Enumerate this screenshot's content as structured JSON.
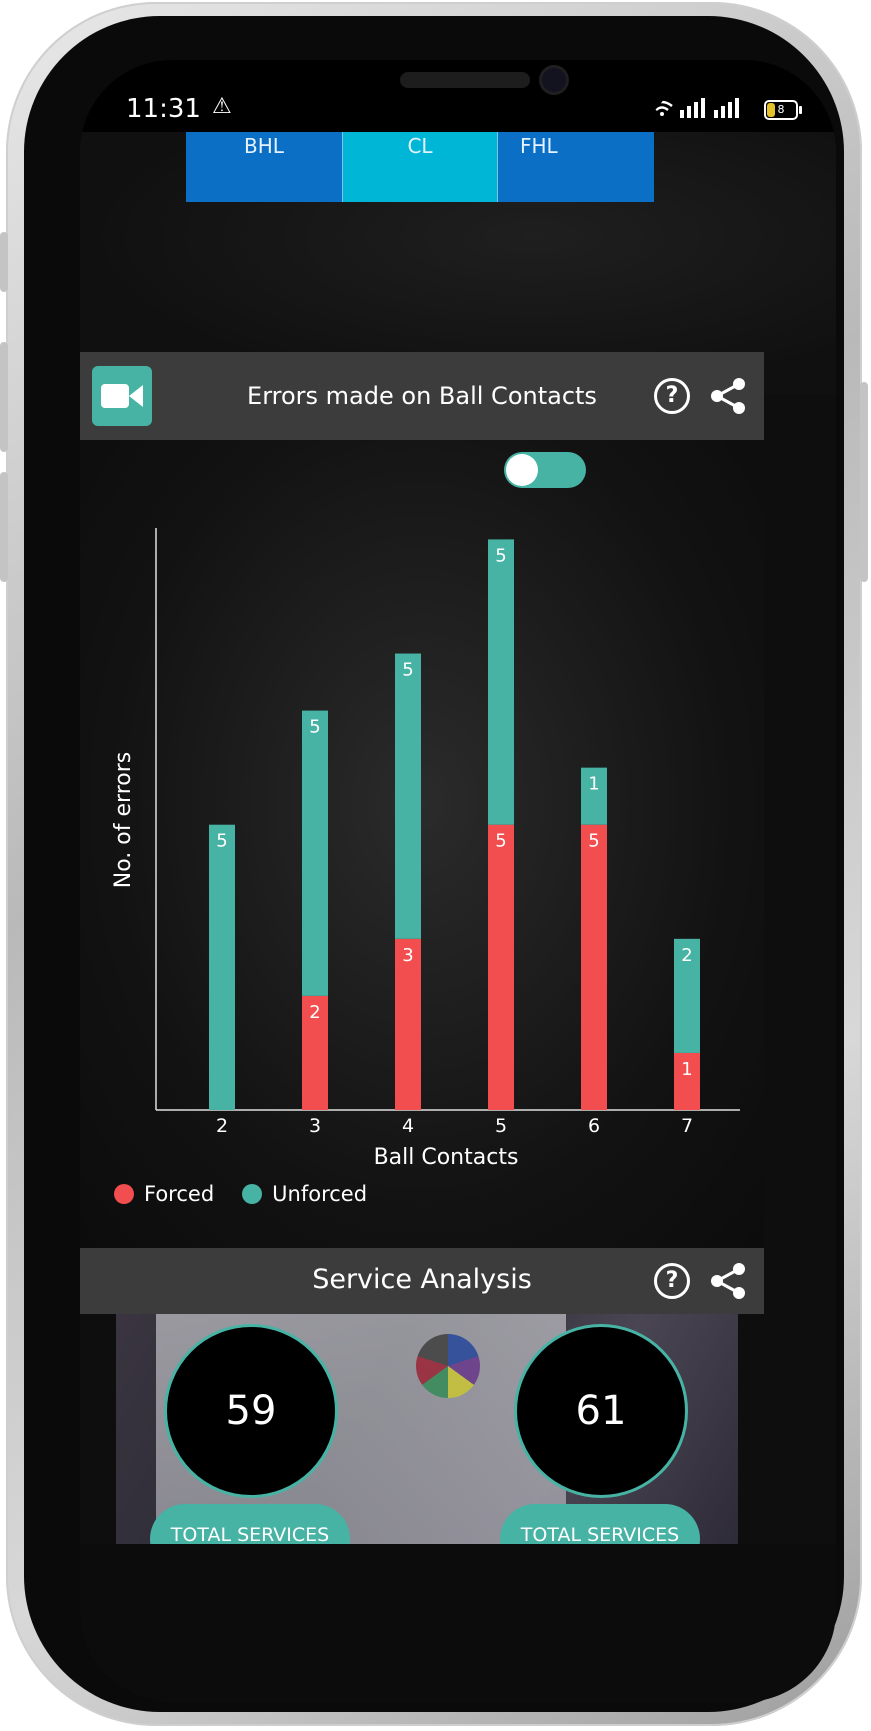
{
  "status_bar": {
    "time": "11:31",
    "battery": "8"
  },
  "tabs": [
    {
      "label": "BHL"
    },
    {
      "label": "CL"
    },
    {
      "label": "FHL"
    }
  ],
  "errors_card": {
    "title": "Errors made on Ball Contacts",
    "help_glyph": "?"
  },
  "chart_data": {
    "type": "bar",
    "stacked": true,
    "xlabel": "Ball Contacts",
    "ylabel": "No. of errors",
    "categories": [
      "2",
      "3",
      "4",
      "5",
      "6",
      "7"
    ],
    "series": [
      {
        "name": "Forced",
        "color": "#f24d4f",
        "values": [
          0,
          2,
          3,
          5,
          5,
          1
        ]
      },
      {
        "name": "Unforced",
        "color": "#47b3a5",
        "values": [
          5,
          5,
          5,
          5,
          1,
          2
        ]
      }
    ],
    "ylim": [
      0,
      10.2
    ],
    "grid": false,
    "legend": "bottom-left"
  },
  "service_card": {
    "title": "Service Analysis",
    "help_glyph": "?",
    "stats": [
      {
        "value": "59",
        "label": "TOTAL SERVICES"
      },
      {
        "value": "61",
        "label": "TOTAL SERVICES"
      }
    ]
  },
  "icons": {
    "video": "video-camera-icon",
    "help": "help-circle-icon",
    "share": "share-icon",
    "warning": "warning-icon"
  }
}
